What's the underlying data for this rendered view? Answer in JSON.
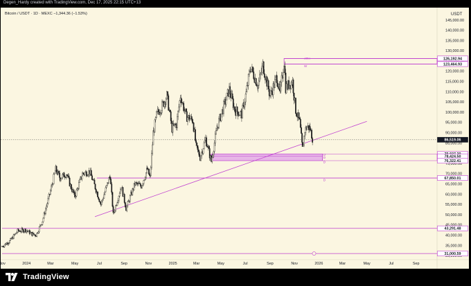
{
  "header": {
    "text": "Degen_Hardy created with TradingView.com, Dec 17, 2025 22:15 UTC+13"
  },
  "symbol": {
    "text": "Bitcoin / USDT · 1D · MEXC  −1,344.36 (−1.53%)"
  },
  "footer": {
    "brand": "TradingView"
  },
  "chart_data": {
    "type": "candlestick",
    "title": "Bitcoin / USDT · 1D · MEXC",
    "price_axis_label": "USDT",
    "y_axis": {
      "ticks": [
        "30,000.00",
        "35,000.00",
        "40,000.00",
        "45,000.00",
        "50,000.00",
        "55,000.00",
        "60,000.00",
        "65,000.00",
        "70,000.00",
        "75,000.00",
        "80,000.00",
        "85,000.00",
        "90,000.00",
        "95,000.00",
        "100,000.00",
        "105,000.00",
        "110,000.00",
        "115,000.00",
        "120,000.00",
        "125,000.00",
        "130,000.00",
        "135,000.00",
        "140,000.00",
        "145,000.00"
      ],
      "range": [
        28000,
        151000
      ]
    },
    "x_axis": {
      "ticks": [
        "Nov",
        "2024",
        "Mar",
        "May",
        "Jul",
        "Sep",
        "Nov",
        "2025",
        "Mar",
        "May",
        "Jul",
        "Sep",
        "Nov",
        "2026",
        "Mar",
        "May",
        "Jul",
        "Sep"
      ],
      "range": [
        "2023-11-01",
        "2026-10-20"
      ]
    },
    "price_series": [
      {
        "date": "2023-11-01",
        "close": 34500
      },
      {
        "date": "2023-11-20",
        "close": 37000
      },
      {
        "date": "2023-12-10",
        "close": 42000
      },
      {
        "date": "2023-12-30",
        "close": 42500
      },
      {
        "date": "2024-01-15",
        "close": 40500
      },
      {
        "date": "2024-01-25",
        "close": 40000
      },
      {
        "date": "2024-02-10",
        "close": 47000
      },
      {
        "date": "2024-02-28",
        "close": 60000
      },
      {
        "date": "2024-03-14",
        "close": 72000
      },
      {
        "date": "2024-03-25",
        "close": 68000
      },
      {
        "date": "2024-04-10",
        "close": 70000
      },
      {
        "date": "2024-04-20",
        "close": 64000
      },
      {
        "date": "2024-05-01",
        "close": 59000
      },
      {
        "date": "2024-05-20",
        "close": 70000
      },
      {
        "date": "2024-06-07",
        "close": 71000
      },
      {
        "date": "2024-06-25",
        "close": 61000
      },
      {
        "date": "2024-07-05",
        "close": 55000
      },
      {
        "date": "2024-07-28",
        "close": 69000
      },
      {
        "date": "2024-08-05",
        "close": 50000
      },
      {
        "date": "2024-08-25",
        "close": 64000
      },
      {
        "date": "2024-09-06",
        "close": 53000
      },
      {
        "date": "2024-09-28",
        "close": 65000
      },
      {
        "date": "2024-10-14",
        "close": 64000
      },
      {
        "date": "2024-10-29",
        "close": 72000
      },
      {
        "date": "2024-11-05",
        "close": 68000
      },
      {
        "date": "2024-11-13",
        "close": 90000
      },
      {
        "date": "2024-11-22",
        "close": 99000
      },
      {
        "date": "2024-12-05",
        "close": 103000
      },
      {
        "date": "2024-12-17",
        "close": 108000
      },
      {
        "date": "2024-12-30",
        "close": 92000
      },
      {
        "date": "2025-01-10",
        "close": 94000
      },
      {
        "date": "2025-01-20",
        "close": 108000
      },
      {
        "date": "2025-02-03",
        "close": 98000
      },
      {
        "date": "2025-02-20",
        "close": 96000
      },
      {
        "date": "2025-02-28",
        "close": 83000
      },
      {
        "date": "2025-03-10",
        "close": 78000
      },
      {
        "date": "2025-03-24",
        "close": 87000
      },
      {
        "date": "2025-04-07",
        "close": 76000
      },
      {
        "date": "2025-04-22",
        "close": 93000
      },
      {
        "date": "2025-05-10",
        "close": 104000
      },
      {
        "date": "2025-05-22",
        "close": 111000
      },
      {
        "date": "2025-06-05",
        "close": 101000
      },
      {
        "date": "2025-06-22",
        "close": 99000
      },
      {
        "date": "2025-07-03",
        "close": 109000
      },
      {
        "date": "2025-07-14",
        "close": 122000
      },
      {
        "date": "2025-08-02",
        "close": 113000
      },
      {
        "date": "2025-08-14",
        "close": 123000
      },
      {
        "date": "2025-09-01",
        "close": 108000
      },
      {
        "date": "2025-09-18",
        "close": 117000
      },
      {
        "date": "2025-09-26",
        "close": 109000
      },
      {
        "date": "2025-10-06",
        "close": 125000
      },
      {
        "date": "2025-10-10",
        "close": 112000
      },
      {
        "date": "2025-10-27",
        "close": 115000
      },
      {
        "date": "2025-11-04",
        "close": 101000
      },
      {
        "date": "2025-11-14",
        "close": 95000
      },
      {
        "date": "2025-11-21",
        "close": 82000
      },
      {
        "date": "2025-11-27",
        "close": 91000
      },
      {
        "date": "2025-12-03",
        "close": 93000
      },
      {
        "date": "2025-12-10",
        "close": 92000
      },
      {
        "date": "2025-12-17",
        "close": 86500
      }
    ],
    "horizontal_lines": [
      {
        "label": "67,850.01",
        "price": 67850.01
      },
      {
        "label": "43,291.48",
        "price": 43291.48
      },
      {
        "label": "31,000.59",
        "price": 31000.59
      },
      {
        "label": "126,192.94",
        "price": 126192.94
      },
      {
        "label": "123,464.93",
        "price": 123464.93
      }
    ],
    "zone": {
      "top": 79607.3,
      "mid": 78424.5,
      "bottom": 76322.41,
      "from": "2025-04-07",
      "to": "2026-01-10"
    },
    "trendlines": [
      {
        "from": {
          "date": "2024-06-20",
          "price": 49000
        },
        "to": {
          "date": "2026-05-01",
          "price": 95500
        }
      }
    ],
    "current_price": {
      "label": "86,519.06",
      "value": 86519.06
    },
    "price_tags": [
      {
        "label": "126,192.94",
        "value": 126192.94
      },
      {
        "label": "123,464.93",
        "value": 123464.93
      },
      {
        "label": "86,519.06",
        "value": 86519.06
      },
      {
        "label": "79,607.30",
        "value": 79607.3
      },
      {
        "label": "78,424.50",
        "value": 78424.5
      },
      {
        "label": "76,322.41",
        "value": 76322.41
      },
      {
        "label": "67,850.01",
        "value": 67850.01
      },
      {
        "label": "43,291.48",
        "value": 43291.48
      },
      {
        "label": "31,000.59",
        "value": 31000.59
      }
    ],
    "annotations": [
      {
        "text": "ATH",
        "date": "2025-11-25",
        "price": 126192.94
      },
      {
        "text": "W",
        "date": "2025-11-25",
        "price": 122500
      },
      {
        "text": "D",
        "date": "2026-01-12",
        "price": 79300
      },
      {
        "text": "D",
        "date": "2026-01-12",
        "price": 77900
      },
      {
        "text": "D",
        "date": "2026-01-12",
        "price": 75800
      },
      {
        "text": "D",
        "date": "2026-01-12",
        "price": 66900
      }
    ],
    "colors": {
      "background": "#fbf6e1",
      "zone": "#e0a0e8",
      "line": "#c040d0",
      "candle": "#1e1e1e",
      "tag": "#ffffff"
    }
  }
}
